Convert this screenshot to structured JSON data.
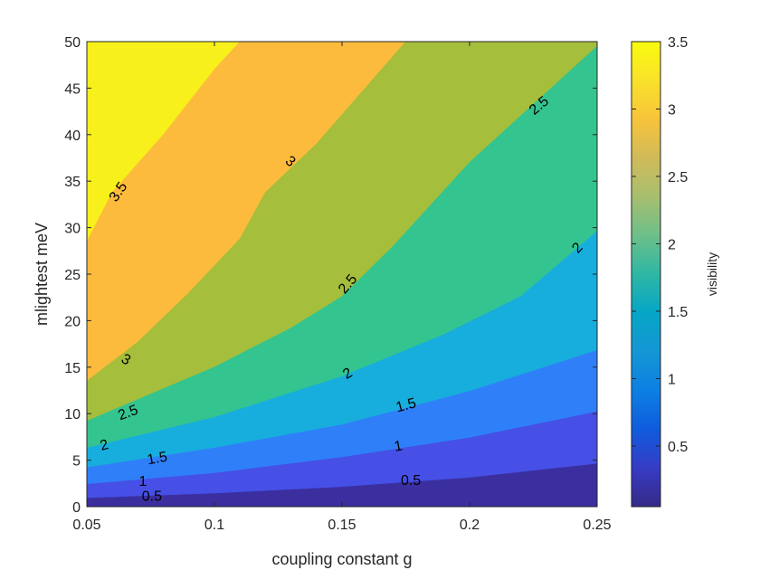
{
  "chart_data": {
    "type": "contour",
    "xlabel": "coupling constant g",
    "ylabel": "mlightest meV",
    "xlim": [
      0.05,
      0.25
    ],
    "ylim": [
      0,
      50
    ],
    "x_ticks": [
      0.05,
      0.1,
      0.15,
      0.2,
      0.25
    ],
    "x_tick_labels": [
      "0.05",
      "0.1",
      "0.15",
      "0.2",
      "0.25"
    ],
    "y_ticks": [
      0,
      5,
      10,
      15,
      20,
      25,
      30,
      35,
      40,
      45,
      50
    ],
    "y_tick_labels": [
      "0",
      "5",
      "10",
      "15",
      "20",
      "25",
      "30",
      "35",
      "40",
      "45",
      "50"
    ],
    "colorbar": {
      "label": "visibility",
      "range": [
        0.05,
        3.5
      ],
      "ticks": [
        0.5,
        1,
        1.5,
        2,
        2.5,
        3,
        3.5
      ],
      "tick_labels": [
        "0.5",
        "1",
        "1.5",
        "2",
        "2.5",
        "3",
        "3.5"
      ],
      "colormap": "parula"
    },
    "levels": [
      0.5,
      1,
      1.5,
      2,
      2.5,
      3,
      3.5
    ],
    "contours": [
      {
        "level": 0.5,
        "label": "0.5",
        "points": [
          [
            0.05,
            0.9
          ],
          [
            0.1,
            1.4
          ],
          [
            0.15,
            2.1
          ],
          [
            0.2,
            3.1
          ],
          [
            0.25,
            4.6
          ]
        ]
      },
      {
        "level": 1,
        "label": "1",
        "points": [
          [
            0.05,
            2.4
          ],
          [
            0.1,
            3.6
          ],
          [
            0.15,
            5.3
          ],
          [
            0.2,
            7.4
          ],
          [
            0.25,
            10.2
          ]
        ]
      },
      {
        "level": 1.5,
        "label": "1.5",
        "points": [
          [
            0.05,
            4.2
          ],
          [
            0.1,
            6.3
          ],
          [
            0.15,
            8.8
          ],
          [
            0.2,
            12.4
          ],
          [
            0.25,
            16.8
          ]
        ]
      },
      {
        "level": 2,
        "label": "2",
        "points": [
          [
            0.05,
            6.3
          ],
          [
            0.1,
            9.6
          ],
          [
            0.15,
            14.0
          ],
          [
            0.19,
            18.5
          ],
          [
            0.22,
            22.6
          ],
          [
            0.25,
            29.6
          ]
        ]
      },
      {
        "level": 2.5,
        "label": "2.5",
        "points": [
          [
            0.05,
            9.2
          ],
          [
            0.1,
            15.0
          ],
          [
            0.13,
            19.2
          ],
          [
            0.15,
            22.6
          ],
          [
            0.17,
            28.0
          ],
          [
            0.2,
            37.0
          ],
          [
            0.23,
            44.5
          ],
          [
            0.25,
            49.5
          ]
        ]
      },
      {
        "level": 3,
        "label": "3",
        "points": [
          [
            0.05,
            13.5
          ],
          [
            0.07,
            17.7
          ],
          [
            0.09,
            23.0
          ],
          [
            0.11,
            28.8
          ],
          [
            0.12,
            33.8
          ],
          [
            0.14,
            39.0
          ],
          [
            0.175,
            50.0
          ]
        ]
      },
      {
        "level": 3.5,
        "label": "3.5",
        "points": [
          [
            0.05,
            28.5
          ],
          [
            0.06,
            33.8
          ],
          [
            0.08,
            40.0
          ],
          [
            0.1,
            47.0
          ],
          [
            0.11,
            50.0
          ]
        ]
      }
    ],
    "contour_labels": [
      {
        "text": "0.5",
        "x": 0.0755,
        "y": 1.2,
        "angle": 0
      },
      {
        "text": "1",
        "x": 0.072,
        "y": 2.8,
        "angle": 0
      },
      {
        "text": "1.5",
        "x": 0.0775,
        "y": 5.3,
        "angle": -10
      },
      {
        "text": "2",
        "x": 0.0567,
        "y": 6.7,
        "angle": -15
      },
      {
        "text": "2.5",
        "x": 0.066,
        "y": 10.2,
        "angle": -20
      },
      {
        "text": "3",
        "x": 0.0655,
        "y": 15.9,
        "angle": 30
      },
      {
        "text": "3.5",
        "x": 0.062,
        "y": 33.9,
        "angle": -55
      },
      {
        "text": "3",
        "x": 0.13,
        "y": 37.2,
        "angle": 40
      },
      {
        "text": "2.5",
        "x": 0.152,
        "y": 24.0,
        "angle": -50
      },
      {
        "text": "2",
        "x": 0.152,
        "y": 14.4,
        "angle": -30
      },
      {
        "text": "1.5",
        "x": 0.175,
        "y": 11.0,
        "angle": -15
      },
      {
        "text": "1",
        "x": 0.172,
        "y": 6.6,
        "angle": -10
      },
      {
        "text": "0.5",
        "x": 0.177,
        "y": 2.9,
        "angle": 0
      },
      {
        "text": "2.5",
        "x": 0.227,
        "y": 43.2,
        "angle": -40
      },
      {
        "text": "2",
        "x": 0.242,
        "y": 27.9,
        "angle": -45
      }
    ],
    "band_colors": [
      "#3b2fa0",
      "#4650e6",
      "#2f80f8",
      "#17aedd",
      "#34c48f",
      "#a5be3b",
      "#fcbb3d",
      "#f7f01a"
    ],
    "colorbar_colors": [
      "#352a87",
      "#363cc5",
      "#0f5cdd",
      "#0c80e3",
      "#1496d4",
      "#06a6c6",
      "#2eb7a4",
      "#6dbf89",
      "#a7bf6f",
      "#d0ba59",
      "#f7c43b",
      "#f9e22a",
      "#f9fb0e"
    ]
  }
}
